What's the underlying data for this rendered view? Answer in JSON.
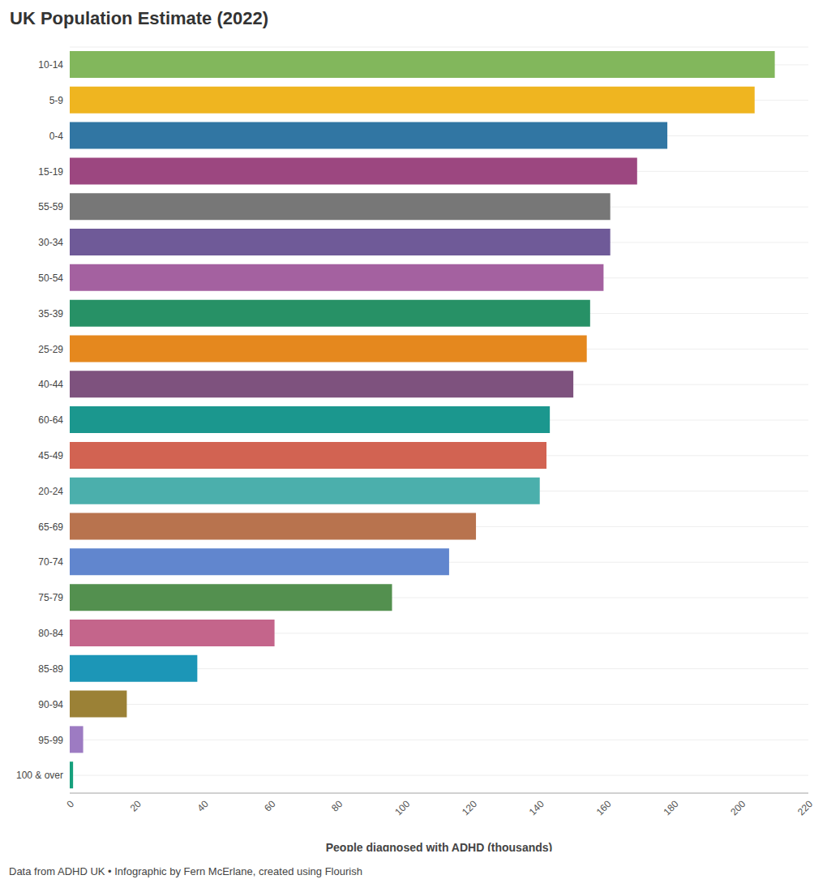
{
  "chart_data": {
    "type": "bar",
    "title": "UK Population Estimate (2022)",
    "orientation": "horizontal",
    "categories": [
      "10-14",
      "5-9",
      "0-4",
      "15-19",
      "55-59",
      "30-34",
      "50-54",
      "35-39",
      "25-29",
      "40-44",
      "60-64",
      "45-49",
      "20-24",
      "65-69",
      "70-74",
      "75-79",
      "80-84",
      "85-89",
      "90-94",
      "95-99",
      "100 & over"
    ],
    "values": [
      210,
      204,
      178,
      169,
      161,
      161,
      159,
      155,
      154,
      150,
      143,
      142,
      140,
      121,
      113,
      96,
      61,
      38,
      17,
      4,
      1
    ],
    "colors": [
      "#82b75c",
      "#efb520",
      "#3176a3",
      "#9c4780",
      "#777777",
      "#6f5a98",
      "#a461a0",
      "#279166",
      "#e5881e",
      "#7e527e",
      "#1b978e",
      "#d26352",
      "#4bafac",
      "#b8734e",
      "#6186ce",
      "#53904f",
      "#c4658b",
      "#1c96b7",
      "#9b8136",
      "#9d7bc2",
      "#16a07c"
    ],
    "xlabel": "People diagnosed with ADHD (thousands)",
    "xlim": [
      0,
      220
    ],
    "xticks": [
      0,
      20,
      40,
      60,
      80,
      100,
      120,
      140,
      160,
      180,
      200,
      220
    ],
    "grid": true,
    "annotations": [
      "Data from ADHD UK • Infographic by Fern McErlane, created using Flourish"
    ]
  }
}
